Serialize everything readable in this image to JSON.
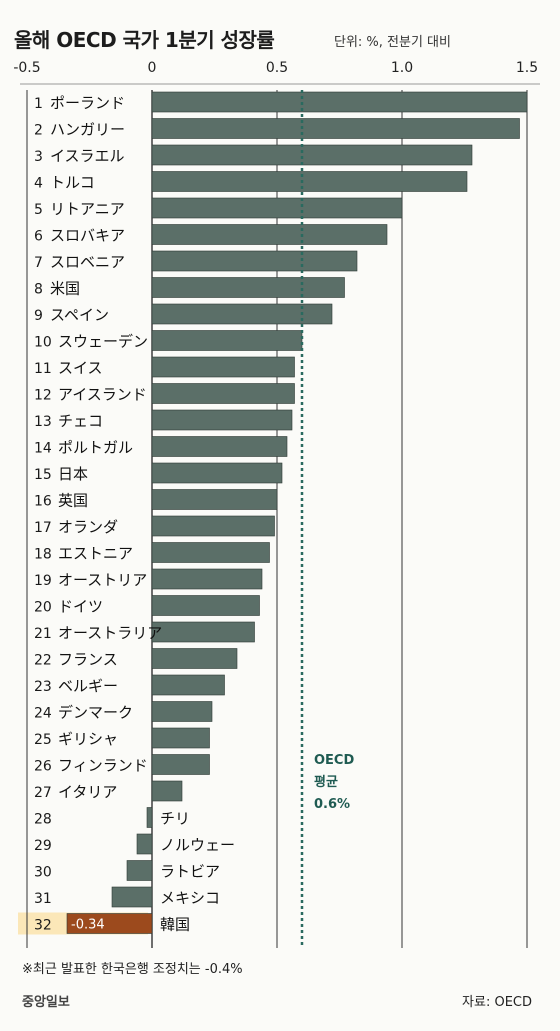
{
  "chart_data": {
    "type": "bar",
    "orientation": "horizontal",
    "title": "올해 OECD 국가 1분기 성장률",
    "subtitle": "단위: %, 전분기 대비",
    "xlim": [
      -0.5,
      1.5
    ],
    "xticks": [
      "-0.5",
      "0",
      "0.5",
      "1.0",
      "1.5"
    ],
    "xtick_values": [
      -0.5,
      0,
      0.5,
      1.0,
      1.5
    ],
    "grid": true,
    "ranks": [
      "1",
      "2",
      "3",
      "4",
      "5",
      "6",
      "7",
      "8",
      "9",
      "10",
      "11",
      "12",
      "13",
      "14",
      "15",
      "16",
      "17",
      "18",
      "19",
      "20",
      "21",
      "22",
      "23",
      "24",
      "25",
      "26",
      "27",
      "28",
      "29",
      "30",
      "31",
      "32"
    ],
    "categories": [
      "ポーランド",
      "ハンガリー",
      "イスラエル",
      "トルコ",
      "リトアニア",
      "スロバキア",
      "スロベニア",
      "米国",
      "スペイン",
      "スウェーデン",
      "スイス",
      "アイスランド",
      "チェコ",
      "ポルトガル",
      "日本",
      "英国",
      "オランダ",
      "エストニア",
      "オーストリア",
      "ドイツ",
      "オーストラリア",
      "フランス",
      "ベルギー",
      "デンマーク",
      "ギリシャ",
      "フィンランド",
      "イタリア",
      "チリ",
      "ノルウェー",
      "ラトビア",
      "メキシコ",
      "韓国"
    ],
    "values": [
      1.5,
      1.47,
      1.28,
      1.26,
      1.0,
      0.94,
      0.82,
      0.77,
      0.72,
      0.6,
      0.57,
      0.57,
      0.56,
      0.54,
      0.52,
      0.5,
      0.49,
      0.47,
      0.44,
      0.43,
      0.41,
      0.34,
      0.29,
      0.24,
      0.23,
      0.23,
      0.12,
      -0.02,
      -0.06,
      -0.1,
      -0.16,
      -0.34
    ],
    "value_labels": {
      "31": "-0.34"
    },
    "highlight_index": 31,
    "colors": {
      "bar": "#5b6f68",
      "highlight": "#9c4a1d",
      "highlight_row": "#fbe7b8",
      "average": "#2a6a5f",
      "grid": "#333333"
    },
    "average": {
      "value": 0.6,
      "label_line1": "OECD",
      "label_line2": "평균",
      "label_value": "0.6%"
    },
    "footnote": "※최근 발표한 한국은행 조정치는 -0.4%",
    "publisher": "중앙일보",
    "source": "자료: OECD"
  }
}
